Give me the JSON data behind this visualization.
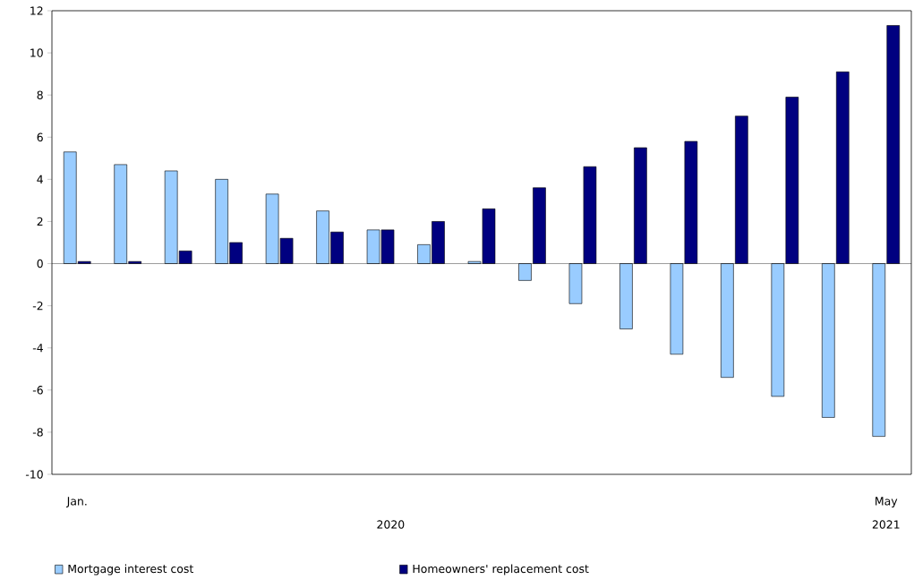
{
  "chart_data": {
    "type": "bar",
    "categories": [
      "Jan.",
      null,
      null,
      null,
      null,
      null,
      null,
      null,
      null,
      null,
      null,
      null,
      null,
      null,
      null,
      null,
      "May"
    ],
    "series": [
      {
        "name": "Mortgage interest cost",
        "color": "#99ccff",
        "values": [
          5.3,
          4.7,
          4.4,
          4.0,
          3.3,
          2.5,
          1.6,
          0.9,
          0.1,
          -0.8,
          -1.9,
          -3.1,
          -4.3,
          -5.4,
          -6.3,
          -7.3,
          -8.2
        ]
      },
      {
        "name": "Homeowners' replacement cost",
        "color": "#000080",
        "values": [
          0.1,
          0.1,
          0.6,
          1.0,
          1.2,
          1.5,
          1.6,
          2.0,
          2.6,
          3.6,
          4.6,
          5.5,
          5.8,
          7.0,
          7.9,
          9.1,
          11.3
        ]
      }
    ],
    "ylim": [
      -10,
      12
    ],
    "yticks": [
      -10,
      -8,
      -6,
      -4,
      -2,
      0,
      2,
      4,
      6,
      8,
      10,
      12
    ],
    "annotations": [
      "2020",
      "2021"
    ],
    "legend": "bottom"
  }
}
